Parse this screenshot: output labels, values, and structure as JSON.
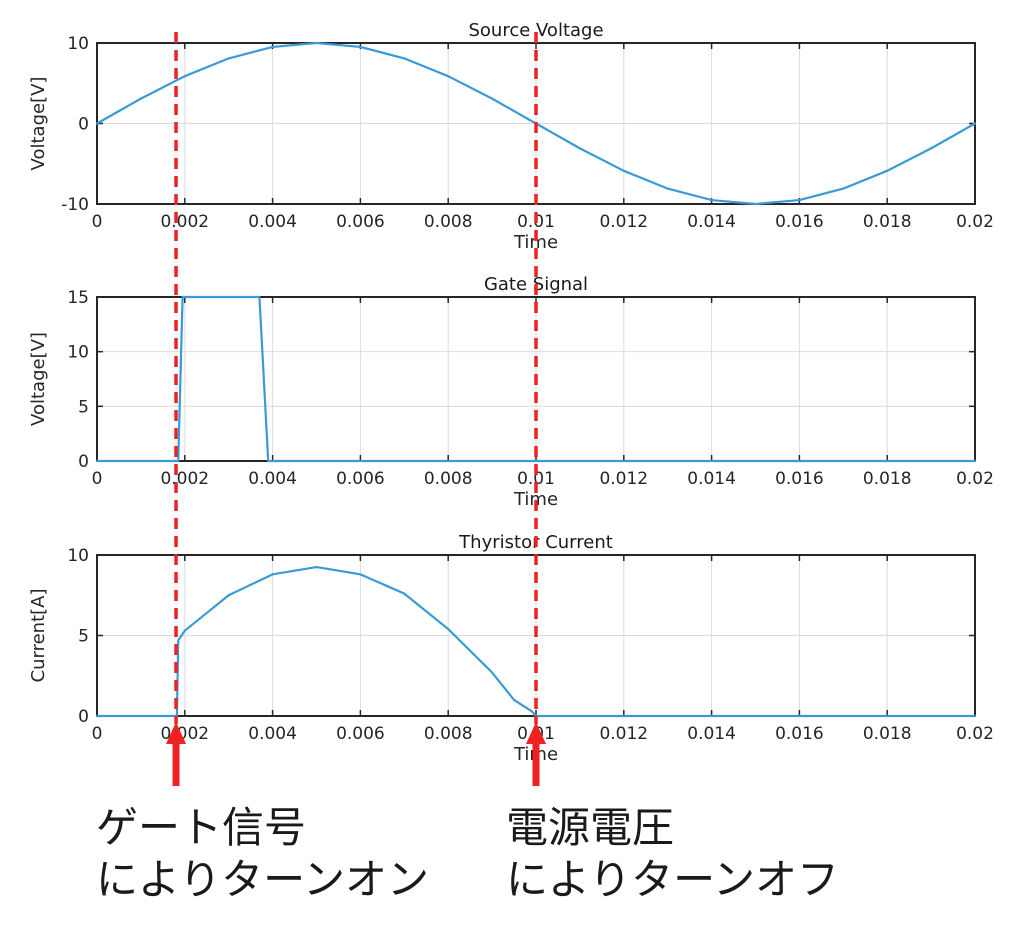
{
  "colors": {
    "series": "#3a9ad6",
    "marker": "#ee2222",
    "axes": "#262626",
    "grid": "#dcdcdc"
  },
  "chart_data": [
    {
      "type": "line",
      "title": "Source Voltage",
      "xlabel": "Time",
      "ylabel": "Voltage[V]",
      "xlim": [
        0,
        0.02
      ],
      "ylim": [
        -10,
        10
      ],
      "x_ticks": [
        "0",
        "0.002",
        "0.004",
        "0.006",
        "0.008",
        "0.01",
        "0.012",
        "0.014",
        "0.016",
        "0.018",
        "0.02"
      ],
      "y_ticks": [
        "-10",
        "0",
        "10"
      ],
      "grid": true,
      "series": [
        {
          "x": [
            0,
            0.001,
            0.002,
            0.003,
            0.004,
            0.005,
            0.006,
            0.007,
            0.008,
            0.009,
            0.01,
            0.011,
            0.012,
            0.013,
            0.014,
            0.015,
            0.016,
            0.017,
            0.018,
            0.019,
            0.02
          ],
          "y": [
            0,
            3.09,
            5.88,
            8.09,
            9.51,
            10,
            9.51,
            8.09,
            5.88,
            3.09,
            0,
            -3.09,
            -5.88,
            -8.09,
            -9.51,
            -10,
            -9.51,
            -8.09,
            -5.88,
            -3.09,
            0
          ]
        }
      ]
    },
    {
      "type": "line",
      "title": "Gate Signal",
      "xlabel": "Time",
      "ylabel": "Voltage[V]",
      "xlim": [
        0,
        0.02
      ],
      "ylim": [
        0,
        15
      ],
      "x_ticks": [
        "0",
        "0.002",
        "0.004",
        "0.006",
        "0.008",
        "0.01",
        "0.012",
        "0.014",
        "0.016",
        "0.018",
        "0.02"
      ],
      "y_ticks": [
        "0",
        "5",
        "10",
        "15"
      ],
      "grid": true,
      "series": [
        {
          "x": [
            0,
            0.00185,
            0.00195,
            0.0037,
            0.0039,
            0.02
          ],
          "y": [
            0,
            0,
            15,
            15,
            0,
            0
          ]
        }
      ]
    },
    {
      "type": "line",
      "title": "Thyristor Current",
      "xlabel": "Time",
      "ylabel": "Current[A]",
      "xlim": [
        0,
        0.02
      ],
      "ylim": [
        0,
        10
      ],
      "x_ticks": [
        "0",
        "0.002",
        "0.004",
        "0.006",
        "0.008",
        "0.01",
        "0.012",
        "0.014",
        "0.016",
        "0.018",
        "0.02"
      ],
      "y_ticks": [
        "0",
        "5",
        "10"
      ],
      "grid": true,
      "series": [
        {
          "x": [
            0,
            0.00182,
            0.00185,
            0.002,
            0.003,
            0.004,
            0.005,
            0.006,
            0.007,
            0.008,
            0.009,
            0.0095,
            0.0099,
            0.01,
            0.02
          ],
          "y": [
            0,
            0,
            4.7,
            5.3,
            7.5,
            8.8,
            9.25,
            8.8,
            7.6,
            5.4,
            2.7,
            1.0,
            0.3,
            0,
            0
          ]
        }
      ]
    }
  ],
  "markers": [
    {
      "x": 0.0018,
      "line1": "ゲート信号",
      "line2": "によりターンオン"
    },
    {
      "x": 0.01,
      "line1": "電源電圧",
      "line2": "によりターンオフ"
    }
  ]
}
